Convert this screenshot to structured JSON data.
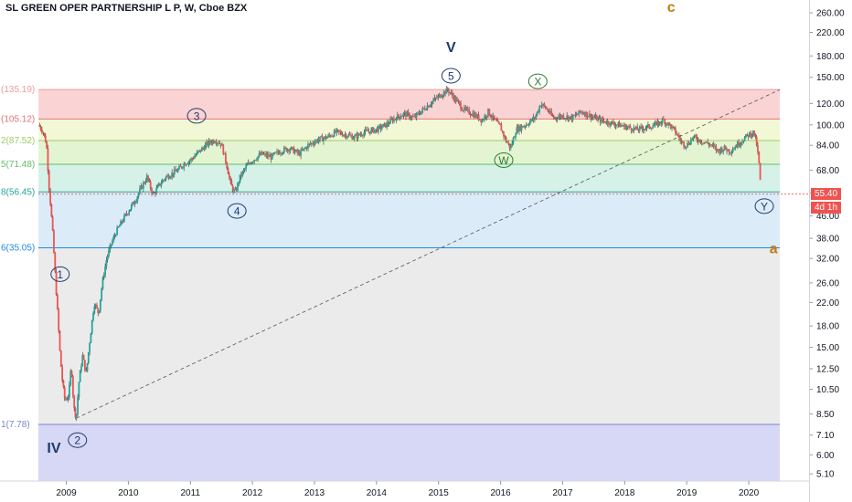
{
  "header": {
    "title": "SL GREEN OPER PARTNERSHIP L P, W, Cboe BZX"
  },
  "colors": {
    "up": "#26a69a",
    "down": "#ef5350",
    "last_price_bg": "#ef5350",
    "wave_blue": "#1e3a6e",
    "wave_green": "#2e7d32",
    "wave_orange": "#c27c0e"
  },
  "chart_data": {
    "type": "candlestick",
    "title": "SL GREEN OPER PARTNERSHIP L P, W, Cboe BZX",
    "y_scale": "log",
    "ylim": [
      4.8,
      290
    ],
    "xlim": [
      2008.55,
      2020.5
    ],
    "x_ticks": [
      "2009",
      "2010",
      "2011",
      "2012",
      "2013",
      "2014",
      "2015",
      "2016",
      "2017",
      "2018",
      "2019",
      "2020"
    ],
    "y_ticks": [
      "260.00",
      "220.00",
      "180.00",
      "150.00",
      "120.00",
      "100.00",
      "84.00",
      "68.00",
      "56.00",
      "46.00",
      "38.00",
      "32.00",
      "26.00",
      "22.00",
      "18.00",
      "15.00",
      "12.50",
      "10.50",
      "8.50",
      "7.10",
      "6.00",
      "5.10"
    ],
    "fib_levels": [
      {
        "label": "(135.19)",
        "value": 135.19,
        "color": "#ef9a9a"
      },
      {
        "label": "(105.12)",
        "value": 105.12,
        "color": "#e57373"
      },
      {
        "label": "2(87.52)",
        "value": 87.52,
        "color": "#9ccc65"
      },
      {
        "label": "5(71.48)",
        "value": 71.48,
        "color": "#66bb6a"
      },
      {
        "label": "8(56.45)",
        "value": 56.45,
        "color": "#26a69a"
      },
      {
        "label": "6(35.05)",
        "value": 35.05,
        "color": "#1e88e5"
      },
      {
        "label": "1(7.78)",
        "value": 7.78,
        "color": "#7986cb"
      }
    ],
    "price_path": [
      [
        2008.55,
        100
      ],
      [
        2008.62,
        95
      ],
      [
        2008.68,
        85
      ],
      [
        2008.72,
        60
      ],
      [
        2008.78,
        40
      ],
      [
        2008.82,
        28
      ],
      [
        2008.86,
        20
      ],
      [
        2008.9,
        14
      ],
      [
        2008.94,
        11
      ],
      [
        2008.98,
        9.5
      ],
      [
        2009.04,
        10
      ],
      [
        2009.08,
        13
      ],
      [
        2009.12,
        9
      ],
      [
        2009.16,
        8.2
      ],
      [
        2009.2,
        11
      ],
      [
        2009.26,
        14
      ],
      [
        2009.32,
        12
      ],
      [
        2009.38,
        16
      ],
      [
        2009.45,
        22
      ],
      [
        2009.52,
        20
      ],
      [
        2009.58,
        26
      ],
      [
        2009.65,
        32
      ],
      [
        2009.72,
        36
      ],
      [
        2009.8,
        40
      ],
      [
        2009.9,
        44
      ],
      [
        2010.0,
        48
      ],
      [
        2010.1,
        52
      ],
      [
        2010.2,
        58
      ],
      [
        2010.3,
        64
      ],
      [
        2010.4,
        55
      ],
      [
        2010.5,
        60
      ],
      [
        2010.6,
        64
      ],
      [
        2010.7,
        66
      ],
      [
        2010.8,
        68
      ],
      [
        2010.9,
        72
      ],
      [
        2011.0,
        74
      ],
      [
        2011.1,
        78
      ],
      [
        2011.2,
        82
      ],
      [
        2011.3,
        86
      ],
      [
        2011.4,
        88
      ],
      [
        2011.5,
        85
      ],
      [
        2011.58,
        72
      ],
      [
        2011.65,
        60
      ],
      [
        2011.72,
        56
      ],
      [
        2011.8,
        64
      ],
      [
        2011.9,
        70
      ],
      [
        2012.0,
        74
      ],
      [
        2012.15,
        78
      ],
      [
        2012.3,
        76
      ],
      [
        2012.45,
        80
      ],
      [
        2012.6,
        82
      ],
      [
        2012.75,
        78
      ],
      [
        2012.9,
        84
      ],
      [
        2013.05,
        88
      ],
      [
        2013.2,
        90
      ],
      [
        2013.35,
        94
      ],
      [
        2013.5,
        92
      ],
      [
        2013.65,
        90
      ],
      [
        2013.8,
        94
      ],
      [
        2014.0,
        96
      ],
      [
        2014.15,
        100
      ],
      [
        2014.3,
        106
      ],
      [
        2014.45,
        110
      ],
      [
        2014.6,
        106
      ],
      [
        2014.75,
        114
      ],
      [
        2014.9,
        122
      ],
      [
        2015.05,
        130
      ],
      [
        2015.15,
        135
      ],
      [
        2015.25,
        126
      ],
      [
        2015.4,
        114
      ],
      [
        2015.55,
        110
      ],
      [
        2015.7,
        104
      ],
      [
        2015.8,
        112
      ],
      [
        2015.9,
        104
      ],
      [
        2016.0,
        98
      ],
      [
        2016.08,
        88
      ],
      [
        2016.16,
        82
      ],
      [
        2016.25,
        96
      ],
      [
        2016.4,
        100
      ],
      [
        2016.55,
        106
      ],
      [
        2016.65,
        120
      ],
      [
        2016.75,
        114
      ],
      [
        2016.85,
        106
      ],
      [
        2017.0,
        108
      ],
      [
        2017.15,
        106
      ],
      [
        2017.3,
        112
      ],
      [
        2017.45,
        108
      ],
      [
        2017.6,
        104
      ],
      [
        2017.75,
        102
      ],
      [
        2017.9,
        100
      ],
      [
        2018.05,
        98
      ],
      [
        2018.2,
        96
      ],
      [
        2018.35,
        98
      ],
      [
        2018.5,
        100
      ],
      [
        2018.62,
        104
      ],
      [
        2018.72,
        100
      ],
      [
        2018.82,
        94
      ],
      [
        2018.92,
        86
      ],
      [
        2019.0,
        84
      ],
      [
        2019.1,
        90
      ],
      [
        2019.2,
        88
      ],
      [
        2019.3,
        86
      ],
      [
        2019.4,
        84
      ],
      [
        2019.5,
        80
      ],
      [
        2019.6,
        82
      ],
      [
        2019.7,
        80
      ],
      [
        2019.8,
        84
      ],
      [
        2019.9,
        88
      ],
      [
        2020.0,
        92
      ],
      [
        2020.08,
        94
      ],
      [
        2020.13,
        84
      ],
      [
        2020.17,
        70
      ],
      [
        2020.2,
        55.4
      ]
    ],
    "trend_line": [
      [
        2009.16,
        8.2
      ],
      [
        2020.5,
        135
      ]
    ],
    "wave_labels": [
      {
        "text": "IV",
        "style": "plain",
        "color": "#1e3a6e",
        "x": 2008.8,
        "y": 6.4
      },
      {
        "text": "V",
        "style": "plain",
        "color": "#1e3a6e",
        "x": 2015.2,
        "y": 195
      },
      {
        "text": "1",
        "style": "circle",
        "color": "#1e3a6e",
        "x": 2008.9,
        "y": 28
      },
      {
        "text": "2",
        "style": "circle",
        "color": "#1e3a6e",
        "x": 2009.18,
        "y": 6.8
      },
      {
        "text": "3",
        "style": "circle",
        "color": "#1e3a6e",
        "x": 2011.1,
        "y": 108
      },
      {
        "text": "4",
        "style": "circle",
        "color": "#1e3a6e",
        "x": 2011.75,
        "y": 48
      },
      {
        "text": "5",
        "style": "circle",
        "color": "#1e3a6e",
        "x": 2015.2,
        "y": 152
      },
      {
        "text": "W",
        "style": "circle",
        "color": "#2e7d32",
        "x": 2016.05,
        "y": 74
      },
      {
        "text": "X",
        "style": "circle",
        "color": "#2e7d32",
        "x": 2016.6,
        "y": 145
      },
      {
        "text": "Y",
        "style": "circle",
        "color": "#1e3a6e",
        "x": 2020.25,
        "y": 50
      },
      {
        "text": "a",
        "style": "plain",
        "color": "#c27c0e",
        "x": 2020.4,
        "y": 35
      },
      {
        "text": "c",
        "style": "plain",
        "color": "#c27c0e",
        "x": 2018.75,
        "y": 275
      }
    ],
    "last_price": {
      "label": "55.40",
      "value": 55.4
    },
    "countdown": "4d 1h"
  }
}
